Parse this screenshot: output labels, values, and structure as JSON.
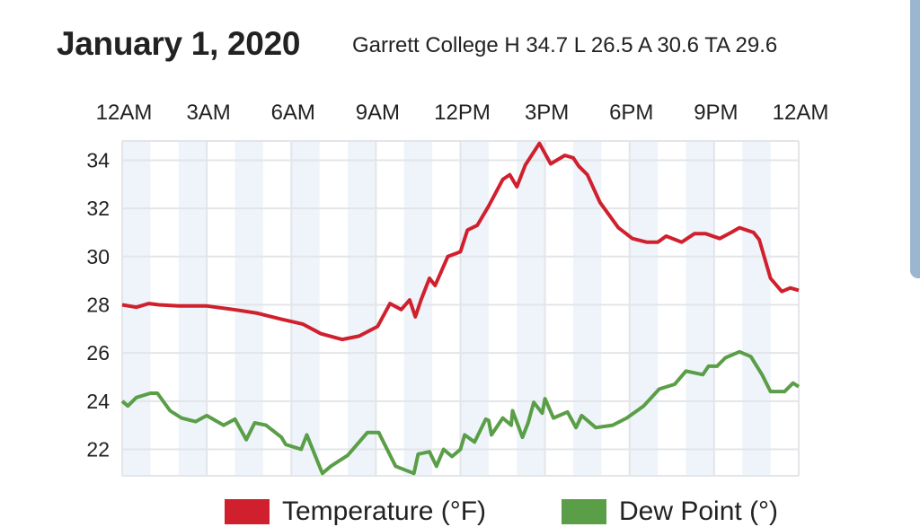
{
  "chart_data": {
    "type": "line",
    "title": "January 1, 2020",
    "subtitle": "Garrett College H 34.7 L 26.5 A 30.6 TA 29.6",
    "xlabel": "",
    "ylabel": "",
    "x_unit": "hours since midnight",
    "xlim": [
      0,
      24
    ],
    "ylim": [
      20.9,
      34.8
    ],
    "x_tick_labels": [
      "12AM",
      "3AM",
      "6AM",
      "9AM",
      "12PM",
      "3PM",
      "6PM",
      "9PM",
      "12AM"
    ],
    "y_ticks": [
      22,
      24,
      26,
      28,
      30,
      32,
      34
    ],
    "grid": true,
    "shaded_bands": "alternate hours",
    "legend_position": "bottom",
    "colors": {
      "temperature": "#d0202d",
      "dew_point": "#5a9e48",
      "band": "#eef4fa",
      "grid": "#e3e5e8"
    },
    "series": [
      {
        "name": "Temperature (°F)",
        "x": [
          0,
          0.5,
          0.95,
          1.3,
          2,
          3,
          3.96,
          4.8,
          5.65,
          6.4,
          7.05,
          7.8,
          8.4,
          9.06,
          9.5,
          9.9,
          10.2,
          10.4,
          10.6,
          10.9,
          11.1,
          11.55,
          12.0,
          12.25,
          12.6,
          13.0,
          13.5,
          13.75,
          14.0,
          14.3,
          14.8,
          15.2,
          15.7,
          16.0,
          16.2,
          16.5,
          16.95,
          17.6,
          18.1,
          18.6,
          19.0,
          19.3,
          19.85,
          20.3,
          20.7,
          21.2,
          21.6,
          21.9,
          22.4,
          22.6,
          23.0,
          23.4,
          23.7,
          24.0
        ],
        "values": [
          28.0,
          27.9,
          28.05,
          28.0,
          27.95,
          27.95,
          27.8,
          27.65,
          27.4,
          27.2,
          26.8,
          26.56,
          26.7,
          27.1,
          28.05,
          27.8,
          28.2,
          27.5,
          28.2,
          29.1,
          28.8,
          30.0,
          30.2,
          31.1,
          31.3,
          32.1,
          33.2,
          33.4,
          32.9,
          33.8,
          34.7,
          33.85,
          34.2,
          34.1,
          33.75,
          33.4,
          32.25,
          31.2,
          30.75,
          30.6,
          30.6,
          30.85,
          30.6,
          30.95,
          30.95,
          30.75,
          31.0,
          31.2,
          31.0,
          30.7,
          29.1,
          28.55,
          28.7,
          28.6
        ]
      },
      {
        "name": "Dew Point (°)",
        "x": [
          0,
          0.2,
          0.5,
          1.0,
          1.25,
          1.7,
          2.1,
          2.6,
          3.0,
          3.6,
          4.0,
          4.4,
          4.7,
          5.1,
          5.65,
          5.8,
          6.35,
          6.55,
          7.1,
          7.4,
          8.0,
          8.7,
          9.1,
          9.7,
          10.35,
          10.5,
          10.9,
          11.15,
          11.4,
          11.7,
          12.0,
          12.15,
          12.5,
          12.9,
          13.0,
          13.1,
          13.5,
          13.8,
          13.85,
          14.2,
          14.4,
          14.6,
          14.9,
          15.0,
          15.3,
          15.8,
          16.1,
          16.3,
          16.8,
          17.4,
          17.9,
          18.5,
          19.05,
          19.6,
          20.0,
          20.6,
          20.8,
          21.1,
          21.4,
          21.9,
          22.3,
          22.7,
          23.0,
          23.5,
          23.8,
          24.0
        ],
        "values": [
          24.0,
          23.8,
          24.15,
          24.33,
          24.33,
          23.6,
          23.3,
          23.15,
          23.4,
          23.0,
          23.25,
          22.4,
          23.1,
          23.0,
          22.5,
          22.2,
          22.0,
          22.6,
          21.0,
          21.3,
          21.75,
          22.7,
          22.7,
          21.3,
          21.0,
          21.8,
          21.9,
          21.3,
          22.0,
          21.7,
          22.0,
          22.6,
          22.3,
          23.25,
          23.2,
          22.6,
          23.3,
          23.0,
          23.6,
          22.5,
          23.1,
          23.95,
          23.5,
          24.1,
          23.3,
          23.55,
          22.9,
          23.4,
          22.9,
          23.0,
          23.3,
          23.8,
          24.5,
          24.7,
          25.25,
          25.1,
          25.45,
          25.45,
          25.8,
          26.05,
          25.85,
          25.1,
          24.4,
          24.4,
          24.75,
          24.6
        ]
      }
    ]
  }
}
